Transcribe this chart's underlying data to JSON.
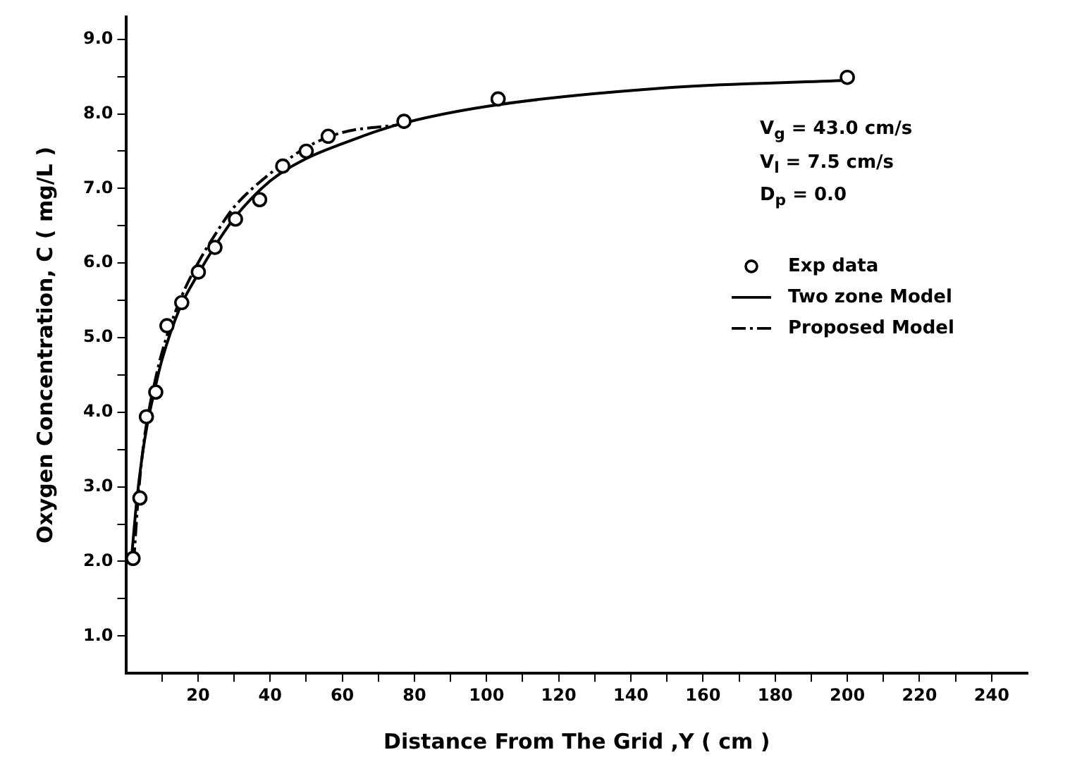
{
  "chart_data": {
    "type": "scatter",
    "xlabel": "Distance From The Grid ,Y ( cm )",
    "ylabel": "Oxygen Concentration, C ( mg/L )",
    "xlim": [
      0,
      250
    ],
    "xticks": [
      {
        "value": 10,
        "label": null
      },
      {
        "value": 20,
        "label": "20"
      },
      {
        "value": 30,
        "label": null
      },
      {
        "value": 40,
        "label": "40"
      },
      {
        "value": 50,
        "label": null
      },
      {
        "value": 60,
        "label": "60"
      },
      {
        "value": 70,
        "label": null
      },
      {
        "value": 80,
        "label": "80"
      },
      {
        "value": 90,
        "label": null
      },
      {
        "value": 100,
        "label": "100"
      },
      {
        "value": 110,
        "label": null
      },
      {
        "value": 120,
        "label": "120"
      },
      {
        "value": 130,
        "label": null
      },
      {
        "value": 140,
        "label": "140"
      },
      {
        "value": 150,
        "label": null
      },
      {
        "value": 160,
        "label": "160"
      },
      {
        "value": 170,
        "label": null
      },
      {
        "value": 180,
        "label": "180"
      },
      {
        "value": 190,
        "label": null
      },
      {
        "value": 200,
        "label": "200"
      },
      {
        "value": 210,
        "label": null
      },
      {
        "value": 220,
        "label": "220"
      },
      {
        "value": 230,
        "label": null
      },
      {
        "value": 240,
        "label": "240"
      }
    ],
    "ylim": [
      0.5,
      9.3
    ],
    "yticks": [
      {
        "value": 1,
        "label": "1.0"
      },
      {
        "value": 1.5,
        "label": null
      },
      {
        "value": 2,
        "label": "2.0"
      },
      {
        "value": 2.5,
        "label": null
      },
      {
        "value": 3,
        "label": "3.0"
      },
      {
        "value": 3.5,
        "label": null
      },
      {
        "value": 4,
        "label": "4.0"
      },
      {
        "value": 4.5,
        "label": null
      },
      {
        "value": 5,
        "label": "5.0"
      },
      {
        "value": 5.5,
        "label": null
      },
      {
        "value": 6,
        "label": "6.0"
      },
      {
        "value": 6.5,
        "label": null
      },
      {
        "value": 7,
        "label": "7.0"
      },
      {
        "value": 7.5,
        "label": null
      },
      {
        "value": 8,
        "label": "8.0"
      },
      {
        "value": 8.5,
        "label": null
      },
      {
        "value": 9,
        "label": "9.0"
      }
    ],
    "grid": false,
    "legend": "right",
    "annotations": [
      "V$_{g}$ = 43.0 cm/s",
      "V$_{l}$ = 7.5 cm/s",
      "D$_{p}$ = 0.0"
    ],
    "series": [
      {
        "name": "Exp data",
        "color": "#000000",
        "marker": "circle",
        "x": [
          2.0,
          3.9,
          5.7,
          8.3,
          11.4,
          15.5,
          20.1,
          24.7,
          30.4,
          37.1,
          43.5,
          50.0,
          56.1,
          77.1,
          103.2,
          200
        ],
        "values": [
          2.04,
          2.85,
          3.94,
          4.27,
          5.16,
          5.47,
          5.88,
          6.21,
          6.59,
          6.85,
          7.3,
          7.5,
          7.7,
          7.9,
          8.2,
          8.49
        ]
      },
      {
        "name": "Two zone Model",
        "type": "line",
        "color": "#000000",
        "marker": "none",
        "line_style": "solid",
        "x": [
          1.5,
          3,
          4.5,
          6,
          8,
          10,
          15,
          20,
          25,
          30,
          40,
          50,
          60,
          75,
          100,
          150,
          200
        ],
        "values": [
          2.0,
          2.8,
          3.4,
          3.85,
          4.3,
          4.7,
          5.4,
          5.85,
          6.25,
          6.6,
          7.1,
          7.4,
          7.6,
          7.85,
          8.1,
          8.35,
          8.45
        ]
      },
      {
        "name": "Proposed Model",
        "type": "line",
        "color": "#000000",
        "marker": "none",
        "line_style": "dashed",
        "x": [
          2.2,
          3.5,
          5,
          6.5,
          8,
          10,
          15,
          20,
          25,
          30,
          40,
          50,
          60,
          75
        ],
        "values": [
          2.0,
          2.9,
          3.6,
          4.05,
          4.4,
          4.8,
          5.5,
          6.0,
          6.4,
          6.75,
          7.2,
          7.55,
          7.75,
          7.85
        ]
      }
    ]
  }
}
